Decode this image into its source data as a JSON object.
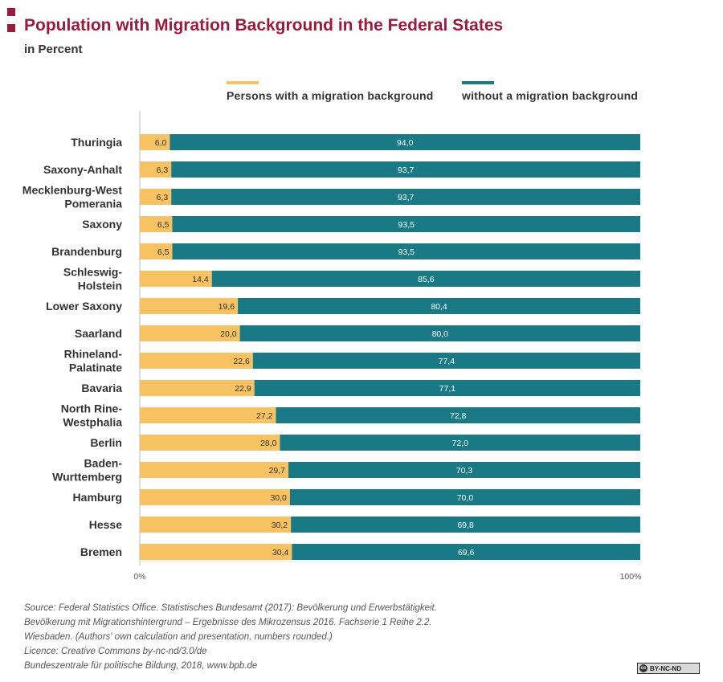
{
  "title": "Population with Migration Background in the Federal States",
  "subtitle": "in Percent",
  "colors": {
    "accent": "#9b1b3c",
    "migration": "#f7c262",
    "without_migration": "#197984",
    "axis": "#bbbbbb"
  },
  "chart_data": {
    "type": "bar",
    "orientation": "horizontal",
    "stacked": true,
    "categories": [
      "Thuringia",
      "Saxony-Anhalt",
      "Mecklenburg-West Pomerania",
      "Saxony",
      "Brandenburg",
      "Schleswig-Holstein",
      "Lower Saxony",
      "Saarland",
      "Rhineland-Palatinate",
      "Bavaria",
      "North Rine-Westphalia",
      "Berlin",
      "Baden-Wurttemberg",
      "Hamburg",
      "Hesse",
      "Bremen"
    ],
    "category_lines": [
      [
        "Thuringia"
      ],
      [
        "Saxony-Anhalt"
      ],
      [
        "Mecklenburg-West",
        "Pomerania"
      ],
      [
        "Saxony"
      ],
      [
        "Brandenburg"
      ],
      [
        "Schleswig-",
        "Holstein"
      ],
      [
        "Lower Saxony"
      ],
      [
        "Saarland"
      ],
      [
        "Rhineland-",
        "Palatinate"
      ],
      [
        "Bavaria"
      ],
      [
        "North Rine-",
        "Westphalia"
      ],
      [
        "Berlin"
      ],
      [
        "Baden-",
        "Wurttemberg"
      ],
      [
        "Hamburg"
      ],
      [
        "Hesse"
      ],
      [
        "Bremen"
      ]
    ],
    "series": [
      {
        "name": "Persons with a migration background",
        "values": [
          6.0,
          6.3,
          6.3,
          6.5,
          6.5,
          14.4,
          19.6,
          20.0,
          22.6,
          22.9,
          27.2,
          28.0,
          29.7,
          30.0,
          30.2,
          30.4
        ],
        "labels": [
          "6,0",
          "6,3",
          "6,3",
          "6,5",
          "6,5",
          "14,4",
          "19,6",
          "20,0",
          "22,6",
          "22,9",
          "27,2",
          "28,0",
          "29,7",
          "30,0",
          "30,2",
          "30,4"
        ]
      },
      {
        "name": "without a migration background",
        "values": [
          94.0,
          93.7,
          93.7,
          93.5,
          93.5,
          85.6,
          80.4,
          80.0,
          77.4,
          77.1,
          72.8,
          72.0,
          70.3,
          70.0,
          69.8,
          69.6
        ],
        "labels": [
          "94,0",
          "93,7",
          "93,7",
          "93,5",
          "93,5",
          "85,6",
          "80,4",
          "80,0",
          "77,4",
          "77,1",
          "72,8",
          "72,0",
          "70,3",
          "70,0",
          "69,8",
          "69,6"
        ]
      }
    ],
    "xlim": [
      0,
      100
    ],
    "x_ticks": [
      "0%",
      "100%"
    ],
    "legend_position": "top-right",
    "grid": false
  },
  "source_lines": [
    "Source: Federal Statistics Office. Statistisches Bundesamt (2017): Bevölkerung und Erwerbstätigkeit.",
    "Bevölkerung mit Migrationshintergrund – Ergebnisse des Mikrozensus 2016. Fachserie 1 Reihe 2.2.",
    "Wiesbaden. (Authors' own calculation and presentation, numbers rounded.)",
    "Licence: Creative Commons by-nc-nd/3.0/de",
    "Bundeszentrale für politische Bildung, 2018, www.bpb.de"
  ],
  "license_badge": {
    "icon": "cc-icon",
    "icon_text": "cc",
    "label": "BY-NC-ND"
  }
}
